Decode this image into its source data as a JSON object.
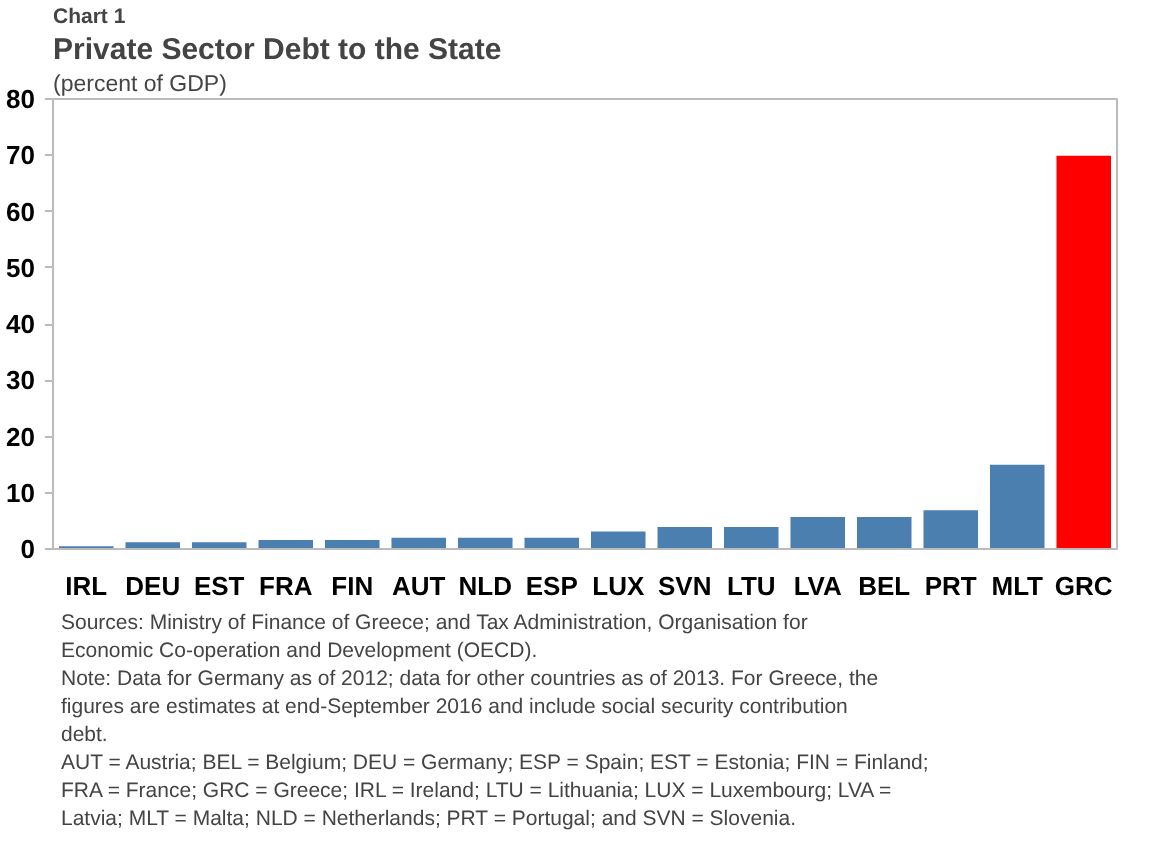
{
  "chart_data": {
    "type": "bar",
    "title": "Private Sector Debt to the State",
    "ylabel": "(percent of GDP)",
    "categories": [
      "IRL",
      "DEU",
      "EST",
      "FRA",
      "FIN",
      "AUT",
      "NLD",
      "ESP",
      "LUX",
      "SVN",
      "LTU",
      "LVA",
      "BEL",
      "PRT",
      "MLT",
      "GRC"
    ],
    "values": [
      0.5,
      1.2,
      1.2,
      1.6,
      1.6,
      2.0,
      2.0,
      2.0,
      3.1,
      3.9,
      3.9,
      5.7,
      5.7,
      6.9,
      15.0,
      69.9
    ],
    "colors": [
      "#4a7fb0",
      "#4a7fb0",
      "#4a7fb0",
      "#4a7fb0",
      "#4a7fb0",
      "#4a7fb0",
      "#4a7fb0",
      "#4a7fb0",
      "#4a7fb0",
      "#4a7fb0",
      "#4a7fb0",
      "#4a7fb0",
      "#4a7fb0",
      "#4a7fb0",
      "#4a7fb0",
      "#ff0000"
    ],
    "ylim": [
      0,
      80
    ],
    "yticks": [
      0,
      10,
      20,
      30,
      40,
      50,
      60,
      70,
      80
    ],
    "grid": false,
    "annotations": [
      "Chart 1",
      "Sources: Ministry of Finance of Greece; and Tax Administration, Organisation for Economic Co-operation and Development (OECD).",
      "Note: Data for Germany as of 2012; data for other countries as of 2013. For Greece, the figures are estimates at end-September 2016 and include social security contribution debt.",
      "AUT = Austria; BEL = Belgium; DEU = Germany; ESP = Spain; EST = Estonia; FIN = Finland; FRA = France; GRC = Greece; IRL = Ireland; LTU = Lithuania; LUX = Luxembourg; LVA = Latvia; MLT = Malta; NLD = Netherlands; PRT = Portugal; and SVN = Slovenia."
    ]
  }
}
